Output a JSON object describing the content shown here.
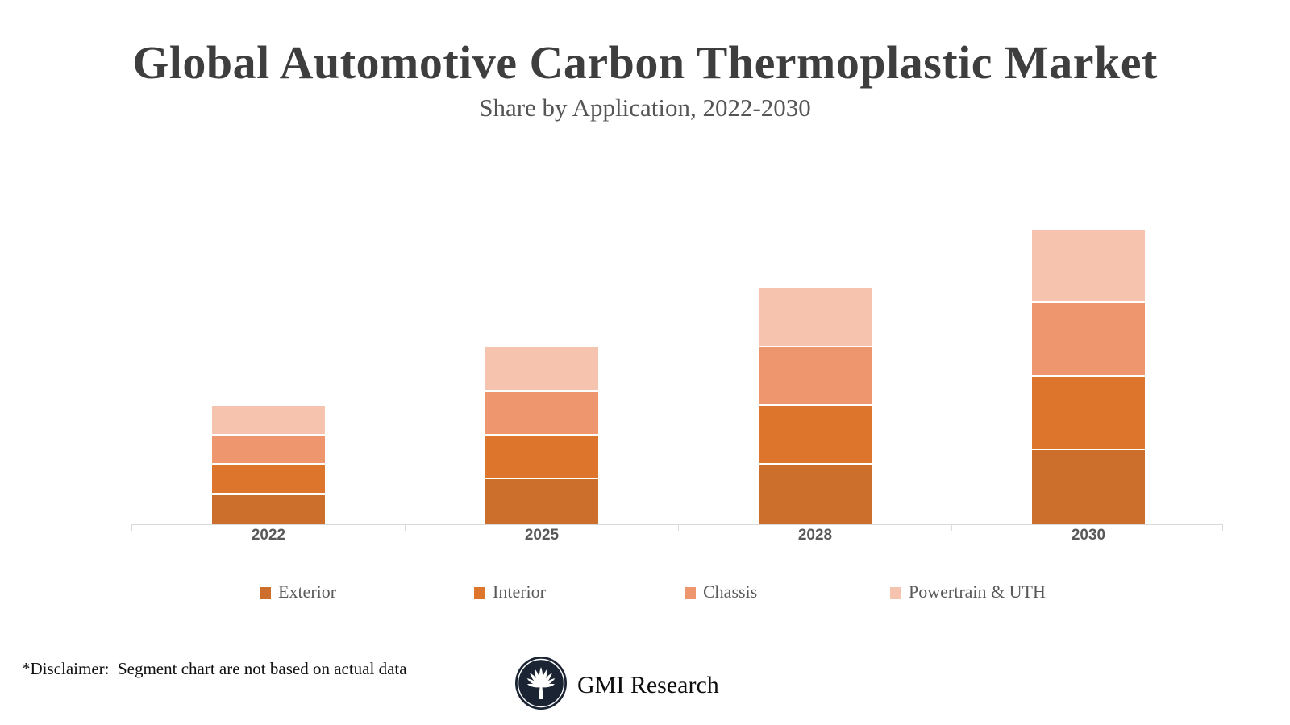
{
  "title": "Global Automotive Carbon Thermoplastic Market",
  "subtitle": "Share by Application, 2022-2030",
  "chart_data": {
    "type": "bar",
    "stacked": true,
    "orientation": "vertical",
    "categories": [
      "2022",
      "2025",
      "2028",
      "2030"
    ],
    "series": [
      {
        "name": "Exterior",
        "color": "#cc6e2c",
        "values": [
          5,
          7.5,
          10,
          12.5
        ]
      },
      {
        "name": "Interior",
        "color": "#dd752c",
        "values": [
          5,
          7.5,
          10,
          12.5
        ]
      },
      {
        "name": "Chassis",
        "color": "#ee976f",
        "values": [
          5,
          7.5,
          10,
          12.5
        ]
      },
      {
        "name": "Powertrain & UTH",
        "color": "#f5c3ae",
        "values": [
          5,
          7.5,
          10,
          12.5
        ]
      }
    ],
    "totals": [
      20,
      30,
      40,
      50
    ],
    "ylim": [
      0,
      52
    ],
    "value_axis_visible": false,
    "gridlines": false,
    "legend_position": "bottom",
    "note": "segments are equal quarters of each bar; chart is illustrative"
  },
  "axis": {
    "line_color": "#d9d9d9",
    "label_color": "#595959"
  },
  "footer": {
    "disclaimer": "*Disclaimer:  Segment chart are not based on actual data",
    "brand": "GMI Research"
  },
  "icons": {
    "logo": "gmi-palm-tree-logo"
  },
  "colors": {
    "title": "#3e3e3e",
    "subtitle": "#555555",
    "logo_navy": "#1b2433",
    "separator": "#ffffff"
  }
}
